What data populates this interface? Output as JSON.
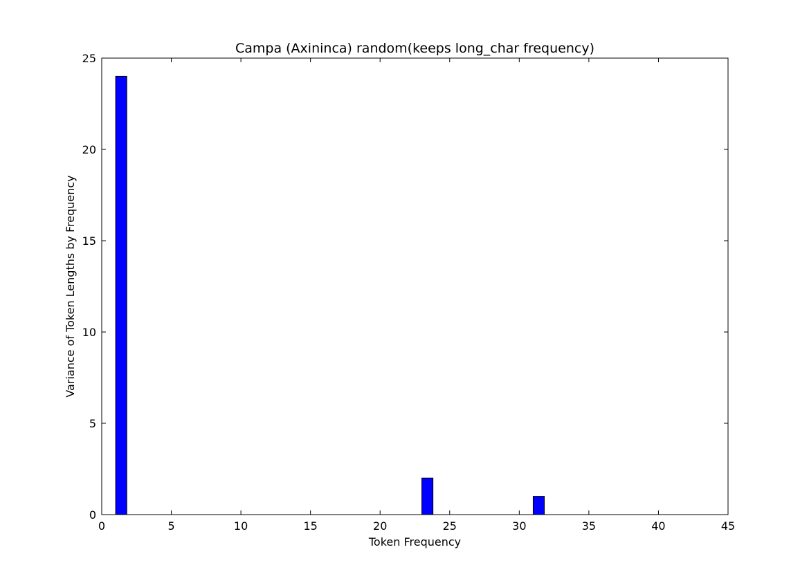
{
  "chart_data": {
    "type": "bar",
    "title": "Campa (Axininca) random(keeps long_char frequency)",
    "xlabel": "Token Frequency",
    "ylabel": "Variance of Token Lengths by Frequency",
    "xlim": [
      0,
      45
    ],
    "ylim": [
      0,
      25
    ],
    "xticks": [
      0,
      5,
      10,
      15,
      20,
      25,
      30,
      35,
      40,
      45
    ],
    "yticks": [
      0,
      5,
      10,
      15,
      20,
      25
    ],
    "bar_width": 0.8,
    "grid": false,
    "bars": [
      {
        "x": 1,
        "value": 24
      },
      {
        "x": 2,
        "value": 0
      },
      {
        "x": 3,
        "value": 0
      },
      {
        "x": 4,
        "value": 0
      },
      {
        "x": 5,
        "value": 0
      },
      {
        "x": 6,
        "value": 0
      },
      {
        "x": 7,
        "value": 0
      },
      {
        "x": 8,
        "value": 0
      },
      {
        "x": 9,
        "value": 0
      },
      {
        "x": 10,
        "value": 0
      },
      {
        "x": 11,
        "value": 0
      },
      {
        "x": 12,
        "value": 0
      },
      {
        "x": 13,
        "value": 0
      },
      {
        "x": 14,
        "value": 0
      },
      {
        "x": 15,
        "value": 0
      },
      {
        "x": 16,
        "value": 0
      },
      {
        "x": 17,
        "value": 0
      },
      {
        "x": 18,
        "value": 0
      },
      {
        "x": 19,
        "value": 0
      },
      {
        "x": 20,
        "value": 0
      },
      {
        "x": 21,
        "value": 0
      },
      {
        "x": 22,
        "value": 0
      },
      {
        "x": 23,
        "value": 2
      },
      {
        "x": 24,
        "value": 0
      },
      {
        "x": 25,
        "value": 0
      },
      {
        "x": 26,
        "value": 0
      },
      {
        "x": 27,
        "value": 0
      },
      {
        "x": 28,
        "value": 0
      },
      {
        "x": 29,
        "value": 0
      },
      {
        "x": 30,
        "value": 0
      },
      {
        "x": 31,
        "value": 1
      },
      {
        "x": 32,
        "value": 0
      },
      {
        "x": 33,
        "value": 0
      },
      {
        "x": 34,
        "value": 0
      },
      {
        "x": 35,
        "value": 0
      },
      {
        "x": 36,
        "value": 0
      },
      {
        "x": 37,
        "value": 0
      },
      {
        "x": 38,
        "value": 0
      },
      {
        "x": 39,
        "value": 0
      },
      {
        "x": 40,
        "value": 0
      },
      {
        "x": 41,
        "value": 0
      },
      {
        "x": 42,
        "value": 0
      }
    ],
    "colors": {
      "bar_fill": "#0000ff",
      "bar_edge": "#000000",
      "axes": "#000000",
      "background": "#ffffff"
    }
  }
}
